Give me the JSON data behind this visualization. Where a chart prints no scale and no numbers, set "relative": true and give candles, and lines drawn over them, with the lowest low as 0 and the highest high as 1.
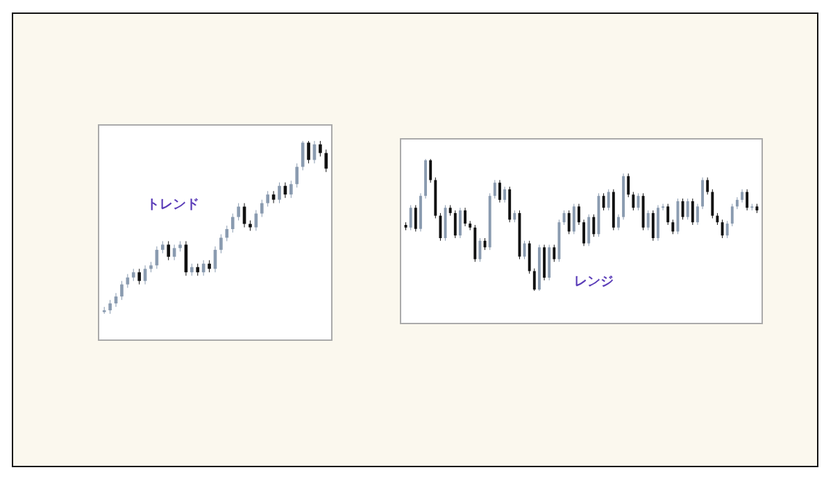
{
  "chart_data": [
    {
      "type": "candlestick",
      "relative": true,
      "annotations": [
        "トレンド"
      ],
      "categories": [
        null,
        null,
        null,
        null,
        null,
        null,
        null,
        null,
        null,
        null,
        null,
        null,
        null,
        null,
        null,
        null,
        null,
        null,
        null,
        null,
        null,
        null,
        null,
        null,
        null,
        null,
        null,
        null,
        null,
        null,
        null,
        null,
        null,
        null,
        null,
        null,
        null,
        null,
        null
      ],
      "ohlc": [
        [
          0.01,
          0.04,
          0,
          0.02
        ],
        [
          0.02,
          0.08,
          0,
          0.06
        ],
        [
          0.06,
          0.12,
          0.04,
          0.1
        ],
        [
          0.1,
          0.19,
          0.08,
          0.17
        ],
        [
          0.17,
          0.23,
          0.15,
          0.21
        ],
        [
          0.21,
          0.26,
          0.19,
          0.24
        ],
        [
          0.24,
          0.26,
          0.17,
          0.19
        ],
        [
          0.19,
          0.28,
          0.17,
          0.26
        ],
        [
          0.26,
          0.3,
          0.24,
          0.28
        ],
        [
          0.28,
          0.39,
          0.26,
          0.37
        ],
        [
          0.37,
          0.42,
          0.35,
          0.4
        ],
        [
          0.4,
          0.42,
          0.31,
          0.33
        ],
        [
          0.33,
          0.4,
          0.31,
          0.38
        ],
        [
          0.38,
          0.42,
          0.36,
          0.4
        ],
        [
          0.4,
          0.42,
          0.22,
          0.24
        ],
        [
          0.24,
          0.29,
          0.22,
          0.27
        ],
        [
          0.27,
          0.29,
          0.22,
          0.24
        ],
        [
          0.24,
          0.31,
          0.22,
          0.29
        ],
        [
          0.29,
          0.31,
          0.24,
          0.26
        ],
        [
          0.26,
          0.39,
          0.24,
          0.37
        ],
        [
          0.37,
          0.46,
          0.35,
          0.44
        ],
        [
          0.44,
          0.51,
          0.42,
          0.49
        ],
        [
          0.49,
          0.58,
          0.47,
          0.56
        ],
        [
          0.56,
          0.64,
          0.54,
          0.62
        ],
        [
          0.62,
          0.64,
          0.5,
          0.52
        ],
        [
          0.52,
          0.54,
          0.48,
          0.5
        ],
        [
          0.5,
          0.6,
          0.48,
          0.58
        ],
        [
          0.58,
          0.66,
          0.56,
          0.64
        ],
        [
          0.64,
          0.71,
          0.62,
          0.69
        ],
        [
          0.69,
          0.71,
          0.64,
          0.66
        ],
        [
          0.66,
          0.76,
          0.64,
          0.74
        ],
        [
          0.74,
          0.76,
          0.67,
          0.69
        ],
        [
          0.69,
          0.77,
          0.67,
          0.75
        ],
        [
          0.75,
          0.87,
          0.73,
          0.85
        ],
        [
          0.85,
          1,
          0.83,
          0.99
        ],
        [
          0.99,
          1,
          0.87,
          0.89
        ],
        [
          0.89,
          1,
          0.87,
          0.98
        ],
        [
          0.98,
          1,
          0.91,
          0.93
        ],
        [
          0.93,
          0.95,
          0.82,
          0.84
        ]
      ]
    },
    {
      "type": "candlestick",
      "relative": true,
      "annotations": [
        "レンジ"
      ],
      "categories": [
        null,
        null,
        null,
        null,
        null,
        null,
        null,
        null,
        null,
        null,
        null,
        null,
        null,
        null,
        null,
        null,
        null,
        null,
        null,
        null,
        null,
        null,
        null,
        null,
        null,
        null,
        null,
        null,
        null,
        null,
        null,
        null,
        null,
        null,
        null,
        null,
        null,
        null,
        null,
        null,
        null,
        null,
        null,
        null,
        null,
        null,
        null,
        null,
        null,
        null,
        null,
        null,
        null,
        null,
        null,
        null,
        null,
        null,
        null,
        null,
        null,
        null,
        null,
        null,
        null,
        null,
        null,
        null,
        null,
        null,
        null,
        null
      ],
      "ohlc": [
        [
          0.5,
          0.52,
          0.46,
          0.48
        ],
        [
          0.48,
          0.65,
          0.46,
          0.63
        ],
        [
          0.63,
          0.65,
          0.45,
          0.47
        ],
        [
          0.47,
          0.74,
          0.45,
          0.72
        ],
        [
          0.72,
          1,
          0.7,
          0.99
        ],
        [
          0.99,
          1,
          0.82,
          0.84
        ],
        [
          0.84,
          0.86,
          0.55,
          0.57
        ],
        [
          0.57,
          0.59,
          0.38,
          0.4
        ],
        [
          0.4,
          0.65,
          0.38,
          0.63
        ],
        [
          0.63,
          0.65,
          0.57,
          0.59
        ],
        [
          0.59,
          0.61,
          0.4,
          0.42
        ],
        [
          0.42,
          0.63,
          0.4,
          0.61
        ],
        [
          0.61,
          0.63,
          0.49,
          0.51
        ],
        [
          0.51,
          0.53,
          0.46,
          0.48
        ],
        [
          0.48,
          0.5,
          0.22,
          0.24
        ],
        [
          0.24,
          0.4,
          0.22,
          0.38
        ],
        [
          0.38,
          0.4,
          0.31,
          0.33
        ],
        [
          0.33,
          0.74,
          0.31,
          0.72
        ],
        [
          0.72,
          0.84,
          0.7,
          0.82
        ],
        [
          0.82,
          0.84,
          0.67,
          0.69
        ],
        [
          0.69,
          0.79,
          0.67,
          0.77
        ],
        [
          0.77,
          0.79,
          0.52,
          0.54
        ],
        [
          0.54,
          0.61,
          0.52,
          0.59
        ],
        [
          0.59,
          0.61,
          0.24,
          0.26
        ],
        [
          0.26,
          0.38,
          0.24,
          0.36
        ],
        [
          0.36,
          0.38,
          0.13,
          0.15
        ],
        [
          0.15,
          0.17,
          0,
          0.01
        ],
        [
          0.01,
          0.35,
          0,
          0.33
        ],
        [
          0.33,
          0.35,
          0.08,
          0.1
        ],
        [
          0.1,
          0.35,
          0.08,
          0.33
        ],
        [
          0.33,
          0.35,
          0.22,
          0.24
        ],
        [
          0.24,
          0.54,
          0.22,
          0.52
        ],
        [
          0.52,
          0.61,
          0.5,
          0.59
        ],
        [
          0.59,
          0.61,
          0.43,
          0.45
        ],
        [
          0.45,
          0.66,
          0.43,
          0.64
        ],
        [
          0.64,
          0.66,
          0.5,
          0.52
        ],
        [
          0.52,
          0.54,
          0.34,
          0.36
        ],
        [
          0.36,
          0.58,
          0.34,
          0.56
        ],
        [
          0.56,
          0.58,
          0.41,
          0.43
        ],
        [
          0.43,
          0.74,
          0.41,
          0.72
        ],
        [
          0.72,
          0.74,
          0.61,
          0.63
        ],
        [
          0.63,
          0.77,
          0.61,
          0.75
        ],
        [
          0.75,
          0.77,
          0.46,
          0.48
        ],
        [
          0.48,
          0.58,
          0.46,
          0.56
        ],
        [
          0.56,
          0.89,
          0.54,
          0.87
        ],
        [
          0.87,
          0.89,
          0.71,
          0.73
        ],
        [
          0.73,
          0.75,
          0.61,
          0.63
        ],
        [
          0.63,
          0.74,
          0.61,
          0.72
        ],
        [
          0.72,
          0.74,
          0.46,
          0.48
        ],
        [
          0.48,
          0.61,
          0.46,
          0.59
        ],
        [
          0.59,
          0.61,
          0.38,
          0.4
        ],
        [
          0.4,
          0.65,
          0.38,
          0.63
        ],
        [
          0.63,
          0.66,
          0.61,
          0.64
        ],
        [
          0.64,
          0.66,
          0.5,
          0.52
        ],
        [
          0.52,
          0.54,
          0.43,
          0.45
        ],
        [
          0.45,
          0.7,
          0.43,
          0.68
        ],
        [
          0.68,
          0.7,
          0.54,
          0.56
        ],
        [
          0.56,
          0.7,
          0.54,
          0.68
        ],
        [
          0.68,
          0.7,
          0.5,
          0.52
        ],
        [
          0.52,
          0.66,
          0.5,
          0.64
        ],
        [
          0.64,
          0.86,
          0.62,
          0.84
        ],
        [
          0.84,
          0.86,
          0.73,
          0.75
        ],
        [
          0.75,
          0.77,
          0.55,
          0.57
        ],
        [
          0.57,
          0.59,
          0.5,
          0.52
        ],
        [
          0.52,
          0.54,
          0.4,
          0.42
        ],
        [
          0.42,
          0.53,
          0.4,
          0.51
        ],
        [
          0.51,
          0.66,
          0.49,
          0.64
        ],
        [
          0.64,
          0.71,
          0.62,
          0.69
        ],
        [
          0.69,
          0.77,
          0.67,
          0.75
        ],
        [
          0.75,
          0.77,
          0.61,
          0.63
        ],
        [
          0.63,
          0.66,
          0.61,
          0.64
        ],
        [
          0.64,
          0.66,
          0.59,
          0.61
        ]
      ]
    }
  ]
}
